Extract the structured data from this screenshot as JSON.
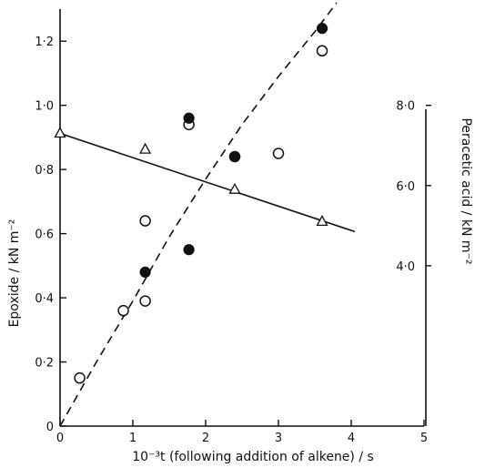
{
  "chart_data": {
    "type": "scatter",
    "title": "",
    "xlabel": "10⁻³t (following addition of alkene) / s",
    "ylabel": "Epoxide / kN m⁻²",
    "ylabel_right": "Peracetic acid / kN m⁻²",
    "xlim": [
      0,
      5
    ],
    "ylim": [
      0,
      1.3
    ],
    "ylim_right": [
      0,
      10.4
    ],
    "grid": false,
    "legend": "none",
    "x_ticks": [
      {
        "value": 0,
        "label": "0"
      },
      {
        "value": 1,
        "label": "1"
      },
      {
        "value": 2,
        "label": "2"
      },
      {
        "value": 3,
        "label": "3"
      },
      {
        "value": 4,
        "label": "4"
      },
      {
        "value": 5,
        "label": "5"
      }
    ],
    "y_ticks": [
      {
        "value": 0,
        "label": "0"
      },
      {
        "value": 0.2,
        "label": "0·2"
      },
      {
        "value": 0.4,
        "label": "0·4"
      },
      {
        "value": 0.6,
        "label": "0·6"
      },
      {
        "value": 0.8,
        "label": "0·8"
      },
      {
        "value": 1.0,
        "label": "1·0"
      },
      {
        "value": 1.2,
        "label": "1·2"
      }
    ],
    "y_right_ticks": [
      {
        "value": 4.0,
        "label": "4·0"
      },
      {
        "value": 6.0,
        "label": "6·0"
      },
      {
        "value": 8.0,
        "label": "8·0"
      }
    ],
    "series": [
      {
        "marker": "open-circle",
        "axis": "left",
        "points": [
          [
            0.27,
            0.15
          ],
          [
            0.87,
            0.36
          ],
          [
            1.17,
            0.39
          ],
          [
            1.17,
            0.64
          ],
          [
            1.77,
            0.94
          ],
          [
            2.4,
            0.84
          ],
          [
            3.0,
            0.85
          ],
          [
            3.6,
            1.17
          ]
        ]
      },
      {
        "marker": "filled-circle",
        "axis": "left",
        "points": [
          [
            1.17,
            0.48
          ],
          [
            1.77,
            0.55
          ],
          [
            1.77,
            0.96
          ],
          [
            2.4,
            0.84
          ],
          [
            3.6,
            1.24
          ]
        ]
      },
      {
        "marker": "open-triangle",
        "axis": "right",
        "points": [
          [
            0.0,
            7.3
          ],
          [
            1.17,
            6.9
          ],
          [
            2.4,
            5.9
          ],
          [
            3.6,
            5.1
          ]
        ]
      }
    ],
    "lines": [
      {
        "style": "dashed",
        "axis": "left",
        "points": [
          [
            0,
            0
          ],
          [
            0.5,
            0.2
          ],
          [
            1.0,
            0.39
          ],
          [
            1.5,
            0.59
          ],
          [
            2.0,
            0.77
          ],
          [
            2.5,
            0.94
          ],
          [
            3.0,
            1.09
          ],
          [
            3.5,
            1.23
          ],
          [
            3.8,
            1.32
          ]
        ]
      },
      {
        "style": "solid",
        "axis": "right",
        "points": [
          [
            0,
            7.3
          ],
          [
            4.05,
            4.85
          ]
        ]
      }
    ]
  }
}
